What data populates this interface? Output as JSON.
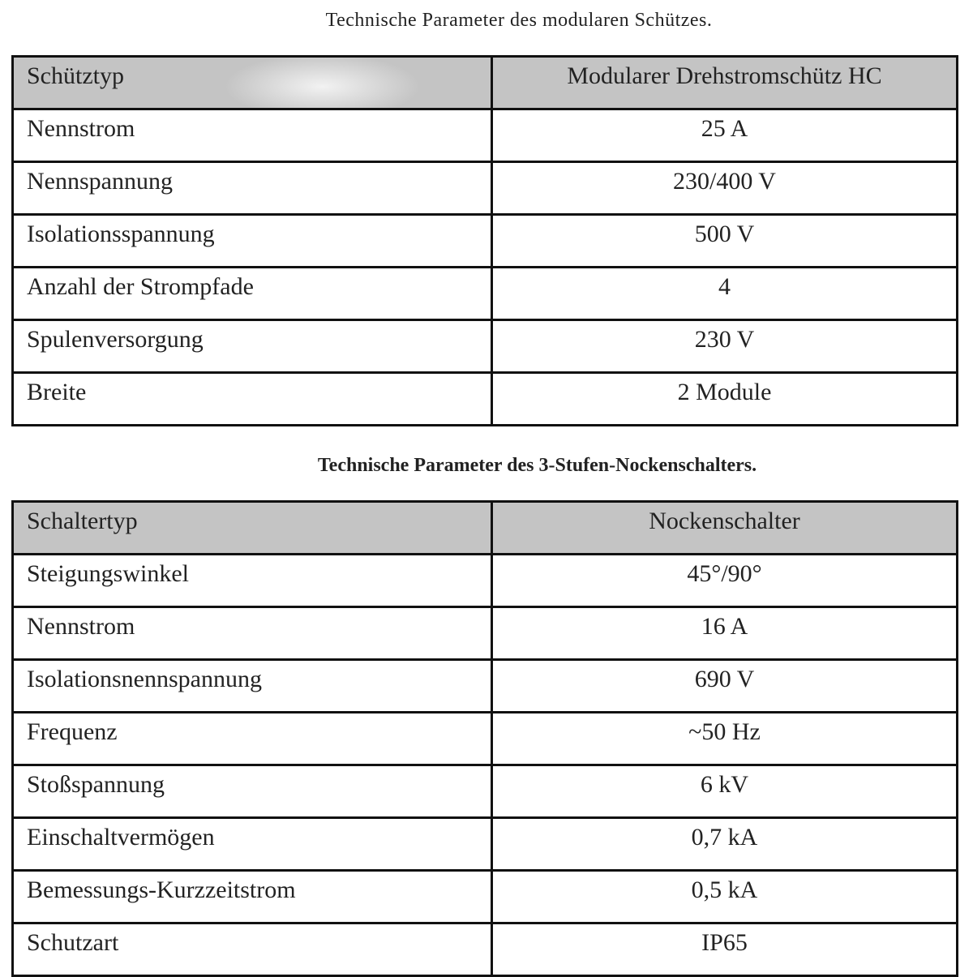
{
  "tables": [
    {
      "title": "Technische Parameter des modularen Schützes.",
      "header": [
        "Schütztyp",
        "Modularer Drehstromschütz HC"
      ],
      "rows": [
        [
          "Nennstrom",
          "25 A"
        ],
        [
          "Nennspannung",
          "230/400 V"
        ],
        [
          "Isolationsspannung",
          "500 V"
        ],
        [
          "Anzahl der Strompfade",
          "4"
        ],
        [
          "Spulenversorgung",
          "230 V"
        ],
        [
          "Breite",
          "2 Module"
        ]
      ]
    },
    {
      "title": "Technische Parameter des 3-Stufen-Nockenschalters.",
      "header": [
        "Schaltertyp",
        "Nockenschalter"
      ],
      "rows": [
        [
          "Steigungswinkel",
          "45°/90°"
        ],
        [
          "Nennstrom",
          "16 A"
        ],
        [
          "Isolationsnennspannung",
          "690 V"
        ],
        [
          "Frequenz",
          "~50 Hz"
        ],
        [
          "Stoßspannung",
          "6 kV"
        ],
        [
          "Einschaltvermögen",
          "0,7 kA"
        ],
        [
          "Bemessungs-Kurzzeitstrom",
          "0,5 kA"
        ],
        [
          "Schutzart",
          "IP65"
        ]
      ]
    }
  ]
}
